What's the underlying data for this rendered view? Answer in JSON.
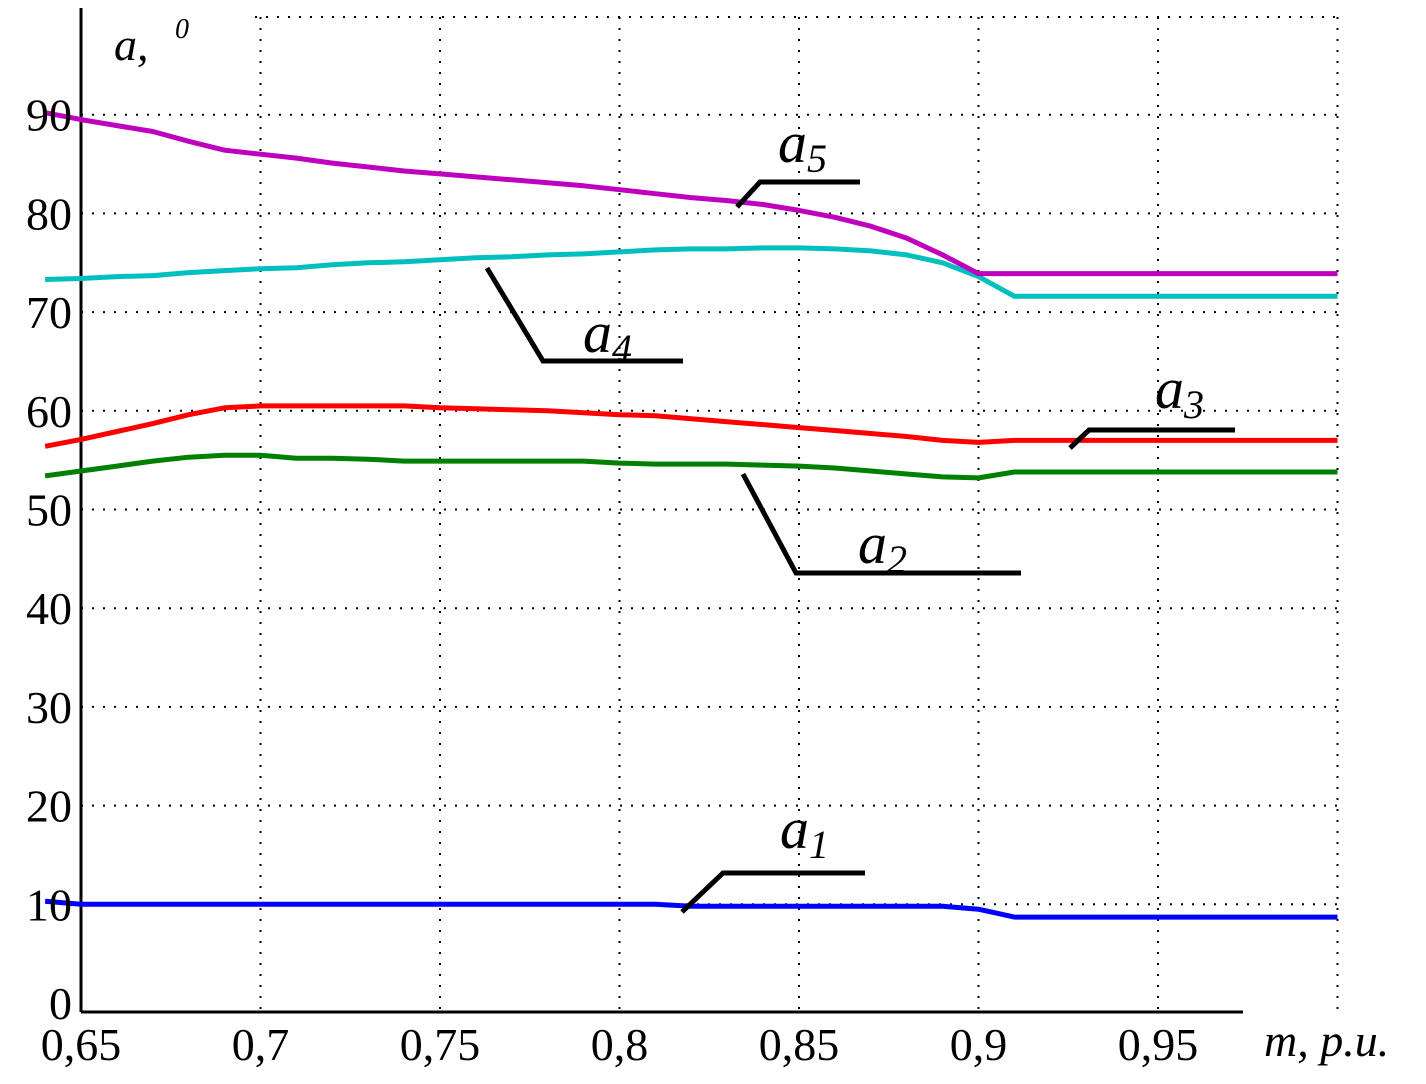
{
  "chart_data": {
    "type": "line",
    "title": "",
    "xlabel": "m, p.u.",
    "ylabel": "a,",
    "ylabel_sup": "0",
    "xlim": [
      0.64,
      0.97
    ],
    "ylim": [
      -3,
      93
    ],
    "grid": true,
    "x_grid_values": [
      0.7,
      0.75,
      0.8,
      0.85,
      0.9,
      0.95,
      1.0
    ],
    "y_grid_values": [
      10,
      20,
      30,
      40,
      50,
      60,
      70,
      80,
      90
    ],
    "x_ticks": [
      {
        "value": 0.65,
        "label": "0,65"
      },
      {
        "value": 0.7,
        "label": "0,7"
      },
      {
        "value": 0.75,
        "label": "0,75"
      },
      {
        "value": 0.8,
        "label": "0,8"
      },
      {
        "value": 0.85,
        "label": "0,85"
      },
      {
        "value": 0.9,
        "label": "0,9"
      },
      {
        "value": 0.95,
        "label": "0,95"
      }
    ],
    "y_ticks": [
      {
        "value": 0,
        "label": "0"
      },
      {
        "value": 10,
        "label": "10"
      },
      {
        "value": 20,
        "label": "20"
      },
      {
        "value": 30,
        "label": "30"
      },
      {
        "value": 40,
        "label": "40"
      },
      {
        "value": 50,
        "label": "50"
      },
      {
        "value": 60,
        "label": "60"
      },
      {
        "value": 70,
        "label": "70"
      },
      {
        "value": 80,
        "label": "80"
      },
      {
        "value": 90,
        "label": "90"
      }
    ],
    "x": [
      0.64,
      0.65,
      0.66,
      0.67,
      0.68,
      0.69,
      0.7,
      0.71,
      0.72,
      0.73,
      0.74,
      0.75,
      0.76,
      0.77,
      0.78,
      0.79,
      0.8,
      0.81,
      0.82,
      0.83,
      0.84,
      0.85,
      0.86,
      0.87,
      0.88,
      0.89,
      0.9,
      0.91,
      0.92,
      0.93,
      0.94,
      0.95,
      0.96,
      0.97,
      0.98,
      0.99,
      1.0
    ],
    "series": [
      {
        "name": "a",
        "subscript": "1",
        "color": "#0000ff",
        "values": [
          10.3,
          10.0,
          10.0,
          10.0,
          10.0,
          10.0,
          10.0,
          10.0,
          10.0,
          10.0,
          10.0,
          10.0,
          10.0,
          10.0,
          10.0,
          10.0,
          10.0,
          10.0,
          9.8,
          9.8,
          9.8,
          9.8,
          9.8,
          9.8,
          9.8,
          9.8,
          9.5,
          8.7,
          8.7,
          8.7,
          8.7,
          8.7,
          8.7,
          8.7,
          8.7,
          8.7,
          8.7
        ]
      },
      {
        "name": "a",
        "subscript": "2",
        "color": "#008000",
        "values": [
          53.4,
          53.9,
          54.4,
          54.9,
          55.3,
          55.5,
          55.5,
          55.2,
          55.2,
          55.1,
          54.9,
          54.9,
          54.9,
          54.9,
          54.9,
          54.9,
          54.7,
          54.6,
          54.6,
          54.6,
          54.5,
          54.4,
          54.2,
          53.9,
          53.6,
          53.3,
          53.2,
          53.8,
          53.8,
          53.8,
          53.8,
          53.8,
          53.8,
          53.8,
          53.8,
          53.8,
          53.8
        ]
      },
      {
        "name": "a",
        "subscript": "3",
        "color": "#ff0000",
        "values": [
          56.4,
          57.1,
          57.9,
          58.7,
          59.6,
          60.3,
          60.5,
          60.5,
          60.5,
          60.5,
          60.5,
          60.3,
          60.2,
          60.1,
          60.0,
          59.8,
          59.6,
          59.5,
          59.2,
          58.9,
          58.6,
          58.3,
          58.0,
          57.7,
          57.4,
          57.0,
          56.8,
          57.0,
          57.0,
          57.0,
          57.0,
          57.0,
          57.0,
          57.0,
          57.0,
          57.0,
          57.0
        ]
      },
      {
        "name": "a",
        "subscript": "4",
        "color": "#00bfbf",
        "values": [
          73.3,
          73.4,
          73.6,
          73.7,
          74.0,
          74.2,
          74.4,
          74.5,
          74.8,
          75.0,
          75.1,
          75.3,
          75.5,
          75.6,
          75.8,
          75.9,
          76.1,
          76.3,
          76.4,
          76.4,
          76.5,
          76.5,
          76.4,
          76.2,
          75.8,
          75.0,
          73.6,
          71.6,
          71.6,
          71.6,
          71.6,
          71.6,
          71.6,
          71.6,
          71.6,
          71.6,
          71.6
        ]
      },
      {
        "name": "a",
        "subscript": "5",
        "color": "#bf00bf",
        "values": [
          90.2,
          89.5,
          88.9,
          88.3,
          87.3,
          86.4,
          86.0,
          85.6,
          85.1,
          84.7,
          84.3,
          84.0,
          83.7,
          83.4,
          83.1,
          82.8,
          82.4,
          82.0,
          81.6,
          81.3,
          80.9,
          80.3,
          79.6,
          78.7,
          77.5,
          75.8,
          73.9,
          73.9,
          73.9,
          73.9,
          73.9,
          73.9,
          73.9,
          73.9,
          73.9,
          73.9,
          73.9
        ]
      }
    ],
    "annotations": [
      {
        "series": "1",
        "text": "a",
        "sub": "1"
      },
      {
        "series": "2",
        "text": "a",
        "sub": "2"
      },
      {
        "series": "3",
        "text": "a",
        "sub": "3"
      },
      {
        "series": "4",
        "text": "a",
        "sub": "4"
      },
      {
        "series": "5",
        "text": "a",
        "sub": "5"
      }
    ]
  }
}
